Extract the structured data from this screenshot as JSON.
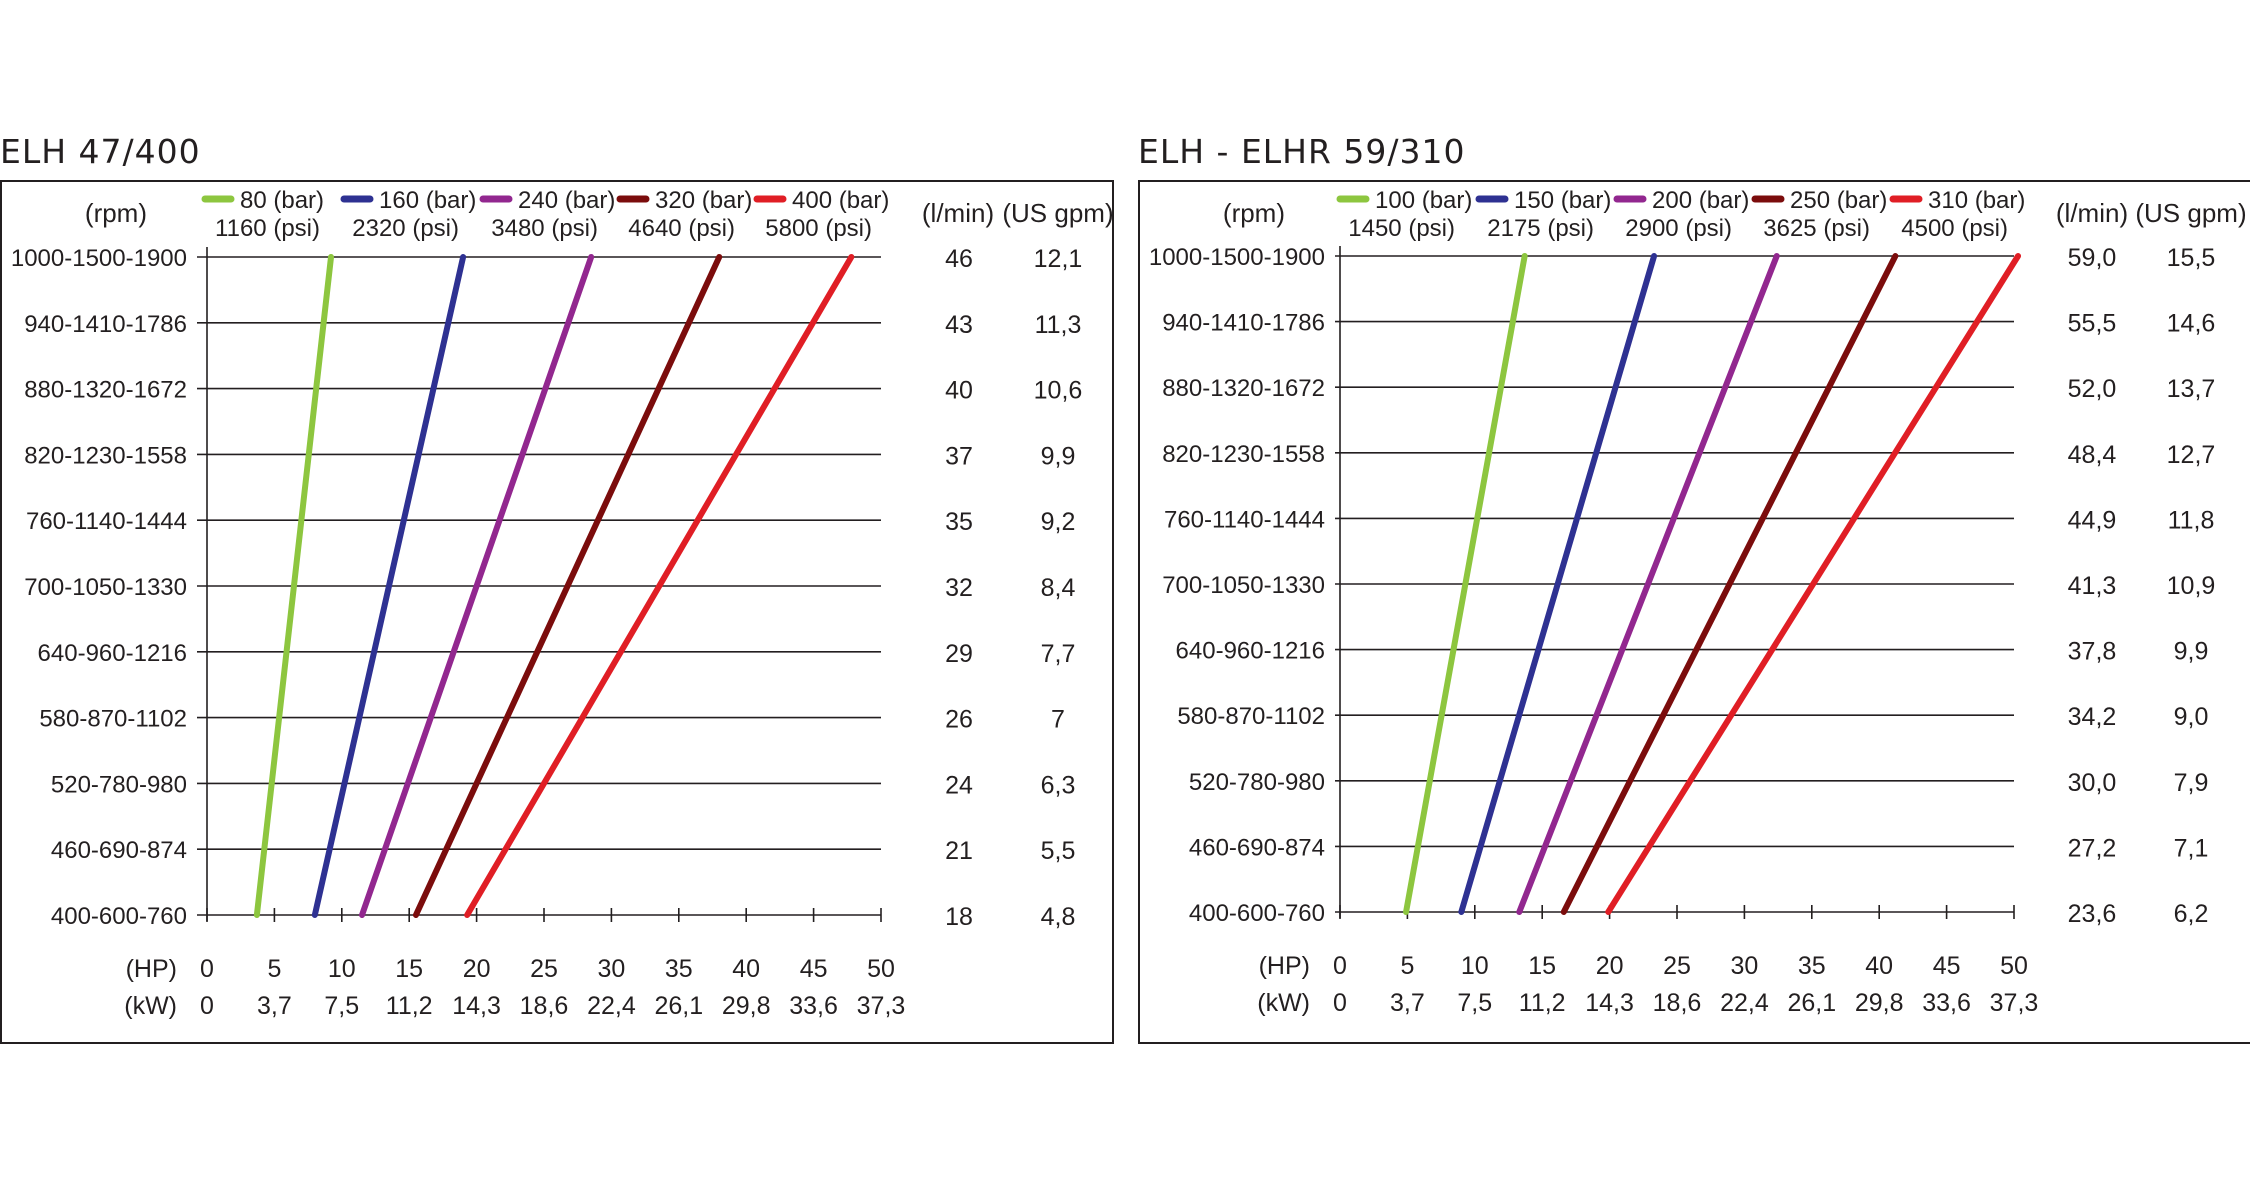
{
  "chart_data": [
    {
      "type": "line",
      "title": "ELH 47/400",
      "y_header": "(rpm)",
      "y_categories": [
        "1000-1500-1900",
        "940-1410-1786",
        "880-1320-1672",
        "820-1230-1558",
        "760-1140-1444",
        "700-1050-1330",
        "640-960-1216",
        "580-870-1102",
        "520-780-980",
        "460-690-874",
        "400-600-760"
      ],
      "flow_headers": [
        "(l/min)",
        "(US gpm)"
      ],
      "flow_lpm": [
        "46",
        "43",
        "40",
        "37",
        "35",
        "32",
        "29",
        "26",
        "24",
        "21",
        "18"
      ],
      "flow_usgpm": [
        "12,1",
        "11,3",
        "10,6",
        "9,9",
        "9,2",
        "8,4",
        "7,7",
        "7",
        "6,3",
        "5,5",
        "4,8"
      ],
      "x_unit_hp": "(HP)",
      "x_unit_kw": "(kW)",
      "x_ticks_hp": [
        "0",
        "5",
        "10",
        "15",
        "20",
        "25",
        "30",
        "35",
        "40",
        "45",
        "50"
      ],
      "x_ticks_kw": [
        "0",
        "3,7",
        "7,5",
        "11,2",
        "14,3",
        "18,6",
        "22,4",
        "26,1",
        "29,8",
        "33,6",
        "37,3"
      ],
      "xlim": [
        0,
        50
      ],
      "series": [
        {
          "name": "80 (bar)",
          "name2": "1160 (psi)",
          "color": "#8dc63f",
          "hp_low": 3.7,
          "hp_high": 9.2
        },
        {
          "name": "160 (bar)",
          "name2": "2320 (psi)",
          "color": "#2e3192",
          "hp_low": 8.0,
          "hp_high": 19.0
        },
        {
          "name": "240 (bar)",
          "name2": "3480 (psi)",
          "color": "#92278f",
          "hp_low": 11.5,
          "hp_high": 28.5
        },
        {
          "name": "320 (bar)",
          "name2": "4640 (psi)",
          "color": "#7b0c0c",
          "hp_low": 15.5,
          "hp_high": 38.0
        },
        {
          "name": "400 (bar)",
          "name2": "5800 (psi)",
          "color": "#e01e25",
          "hp_low": 19.3,
          "hp_high": 47.8
        }
      ]
    },
    {
      "type": "line",
      "title": "ELH - ELHR 59/310",
      "y_header": "(rpm)",
      "y_categories": [
        "1000-1500-1900",
        "940-1410-1786",
        "880-1320-1672",
        "820-1230-1558",
        "760-1140-1444",
        "700-1050-1330",
        "640-960-1216",
        "580-870-1102",
        "520-780-980",
        "460-690-874",
        "400-600-760"
      ],
      "flow_headers": [
        "(l/min)",
        "(US gpm)"
      ],
      "flow_lpm": [
        "59,0",
        "55,5",
        "52,0",
        "48,4",
        "44,9",
        "41,3",
        "37,8",
        "34,2",
        "30,0",
        "27,2",
        "23,6"
      ],
      "flow_usgpm": [
        "15,5",
        "14,6",
        "13,7",
        "12,7",
        "11,8",
        "10,9",
        "9,9",
        "9,0",
        "7,9",
        "7,1",
        "6,2"
      ],
      "x_unit_hp": "(HP)",
      "x_unit_kw": "(kW)",
      "x_ticks_hp": [
        "0",
        "5",
        "10",
        "15",
        "20",
        "25",
        "30",
        "35",
        "40",
        "45",
        "50"
      ],
      "x_ticks_kw": [
        "0",
        "3,7",
        "7,5",
        "11,2",
        "14,3",
        "18,6",
        "22,4",
        "26,1",
        "29,8",
        "33,6",
        "37,3"
      ],
      "xlim": [
        0,
        50
      ],
      "series": [
        {
          "name": "100 (bar)",
          "name2": "1450 (psi)",
          "color": "#8dc63f",
          "hp_low": 4.9,
          "hp_high": 13.7
        },
        {
          "name": "150 (bar)",
          "name2": "2175 (psi)",
          "color": "#2e3192",
          "hp_low": 9.0,
          "hp_high": 23.3
        },
        {
          "name": "200 (bar)",
          "name2": "2900 (psi)",
          "color": "#92278f",
          "hp_low": 13.3,
          "hp_high": 32.4
        },
        {
          "name": "250 (bar)",
          "name2": "3625 (psi)",
          "color": "#7b0c0c",
          "hp_low": 16.6,
          "hp_high": 41.2
        },
        {
          "name": "310 (bar)",
          "name2": "4500 (psi)",
          "color": "#e01e25",
          "hp_low": 19.9,
          "hp_high": 50.3
        }
      ]
    }
  ]
}
